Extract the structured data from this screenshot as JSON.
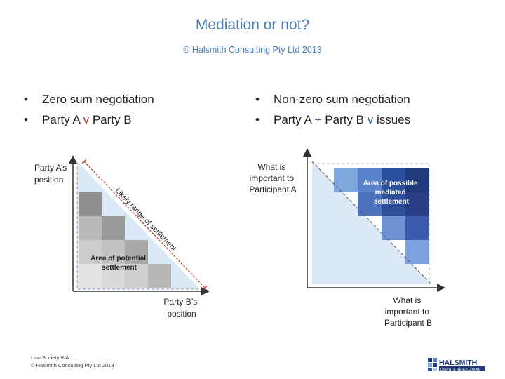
{
  "header": {
    "title": "Mediation or not?",
    "subtitle": "© Halsmith Consulting Pty Ltd 2013"
  },
  "left_bullets": [
    {
      "text": "Zero sum negotiation"
    },
    {
      "pre": "Party A ",
      "op": "v",
      "post": " Party B"
    }
  ],
  "right_bullets": [
    {
      "text": "Non-zero sum negotiation"
    },
    {
      "pre": "Party A ",
      "op": "+",
      "mid": " Party B ",
      "op2": "v",
      "post": " issues"
    }
  ],
  "left_diagram": {
    "y_label": [
      "Party A’s",
      "position"
    ],
    "x_label": [
      "Party B’s",
      "position"
    ],
    "range_label": "Likely range of settlement",
    "area_label": [
      "Area of potential",
      "settlement"
    ]
  },
  "right_diagram": {
    "y_label": [
      "What is",
      "important to",
      "Participant A"
    ],
    "x_label": [
      "What is",
      "important to",
      "Participant B"
    ],
    "area_label": [
      "Area of possible",
      "mediated",
      "settlement"
    ]
  },
  "footer": {
    "line1": "Law Society WA",
    "line2": "© Halsmith Consulting Pty Ltd 2013"
  },
  "logo": {
    "name": "HALSMITH",
    "tagline": "DISPUTE RESOLUTION"
  },
  "colors": {
    "title": "#4a7eb5",
    "red": "#c0392b",
    "blue_operator": "#2d5fa8",
    "light_blue_triangle": "#dbe8f6",
    "navy_block": "#1f3a7a"
  }
}
